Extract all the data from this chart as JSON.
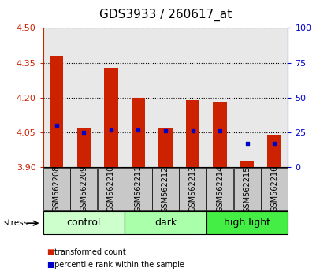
{
  "title": "GDS3933 / 260617_at",
  "samples": [
    "GSM562208",
    "GSM562209",
    "GSM562210",
    "GSM562211",
    "GSM562212",
    "GSM562213",
    "GSM562214",
    "GSM562215",
    "GSM562216"
  ],
  "transformed_counts": [
    4.38,
    4.07,
    4.33,
    4.2,
    4.07,
    4.19,
    4.18,
    3.93,
    4.04
  ],
  "percentile_ranks": [
    30,
    25,
    27,
    27,
    26,
    26,
    26,
    17,
    17
  ],
  "ylim": [
    3.9,
    4.5
  ],
  "yticks": [
    3.9,
    4.05,
    4.2,
    4.35,
    4.5
  ],
  "right_ylim": [
    0,
    100
  ],
  "right_yticks": [
    0,
    25,
    50,
    75,
    100
  ],
  "groups": [
    {
      "label": "control",
      "indices": [
        0,
        1,
        2
      ],
      "color": "#ccffcc"
    },
    {
      "label": "dark",
      "indices": [
        3,
        4,
        5
      ],
      "color": "#aaffaa"
    },
    {
      "label": "high light",
      "indices": [
        6,
        7,
        8
      ],
      "color": "#44ee44"
    }
  ],
  "bar_color": "#cc2200",
  "blue_color": "#0000cc",
  "bar_bottom": 3.9,
  "bar_width": 0.5,
  "plot_bg_color": "#e8e8e8",
  "label_bg_color": "#c8c8c8",
  "left_tick_color": "#cc2200",
  "right_tick_color": "#0000cc",
  "title_fontsize": 11,
  "tick_fontsize": 8,
  "group_label_fontsize": 9,
  "sample_fontsize": 7
}
